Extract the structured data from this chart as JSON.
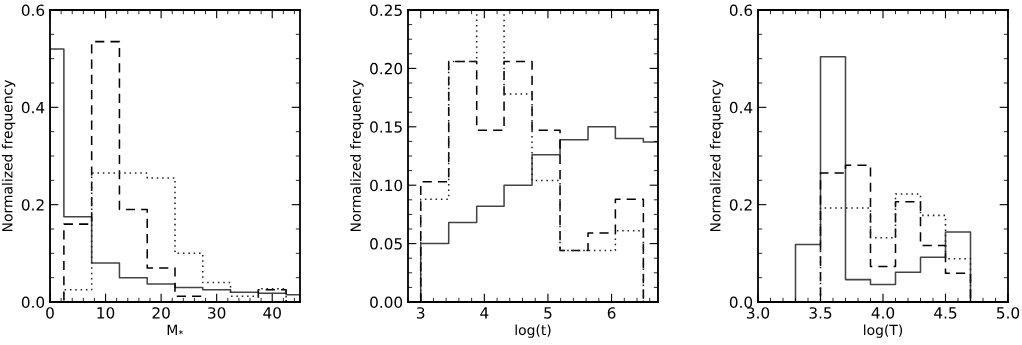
{
  "chart_data": [
    {
      "type": "histogram",
      "xlabel": "M$_{*}$",
      "ylabel": "Normalized frequency",
      "xlim": [
        0,
        45
      ],
      "ylim": [
        0,
        0.6
      ],
      "xticks": [
        0,
        10,
        20,
        30,
        40
      ],
      "yticks": [
        {
          "value": 0,
          "label": "0.0"
        },
        {
          "value": 0.2,
          "label": "0.2"
        },
        {
          "value": 0.4,
          "label": "0.4"
        },
        {
          "value": 0.6,
          "label": "0.6"
        }
      ],
      "grid": false,
      "legend": false,
      "bins": [
        0,
        2.5,
        7.5,
        12.5,
        17.5,
        22.5,
        27.5,
        32.5,
        37.5,
        42.5,
        45
      ],
      "series": [
        {
          "color": "#444444",
          "line_style": "solid",
          "values": [
            0.52,
            0.175,
            0.08,
            0.05,
            0.037,
            0.03,
            0.025,
            0.02,
            0.018,
            0.015
          ]
        },
        {
          "color": "#000000",
          "line_style": "dashed",
          "values": [
            0,
            0.16,
            0.535,
            0.19,
            0.07,
            0.012,
            0.0,
            0.0,
            0.025,
            0
          ]
        },
        {
          "color": "#222222",
          "line_style": "dotted",
          "values": [
            0,
            0.025,
            0.265,
            0.265,
            0.255,
            0.1,
            0.04,
            0.012,
            0.027,
            0
          ]
        }
      ]
    },
    {
      "type": "histogram",
      "xlabel": "log(t)",
      "ylabel": "Normalized frequency",
      "xlim": [
        2.8,
        6.73
      ],
      "ylim": [
        0,
        0.25
      ],
      "xticks": [
        3,
        4,
        5,
        6
      ],
      "yticks": [
        {
          "value": 0,
          "label": "0.00"
        },
        {
          "value": 0.05,
          "label": "0.05"
        },
        {
          "value": 0.1,
          "label": "0.10"
        },
        {
          "value": 0.15,
          "label": "0.15"
        },
        {
          "value": 0.2,
          "label": "0.20"
        },
        {
          "value": 0.25,
          "label": "0.25"
        }
      ],
      "grid": false,
      "legend": false,
      "bins": [
        3.0,
        3.44,
        3.88,
        4.31,
        4.75,
        5.19,
        5.63,
        6.06,
        6.5,
        6.73
      ],
      "series": [
        {
          "color": "#444444",
          "line_style": "solid",
          "values": [
            0.05,
            0.068,
            0.082,
            0.1,
            0.126,
            0.139,
            0.15,
            0.14,
            0.137
          ]
        },
        {
          "color": "#000000",
          "line_style": "dashed",
          "values": [
            0.103,
            0.206,
            0.147,
            0.206,
            0.147,
            0.044,
            0.059,
            0.088,
            0
          ]
        },
        {
          "color": "#222222",
          "line_style": "dotted",
          "values": [
            0.088,
            0.206,
            0.25,
            0.178,
            0.104,
            0.044,
            0.044,
            0.061,
            0
          ]
        }
      ]
    },
    {
      "type": "histogram",
      "xlabel": "log(T)",
      "ylabel": "Normalized frequency",
      "xlim": [
        3.0,
        5.0
      ],
      "ylim": [
        0,
        0.6
      ],
      "xticks": [
        {
          "value": 3,
          "label": "3.0"
        },
        {
          "value": 3.5,
          "label": "3.5"
        },
        {
          "value": 4,
          "label": "4.0"
        },
        {
          "value": 4.5,
          "label": "4.5"
        },
        {
          "value": 5,
          "label": "5.0"
        }
      ],
      "yticks": [
        {
          "value": 0,
          "label": "0.0"
        },
        {
          "value": 0.2,
          "label": "0.2"
        },
        {
          "value": 0.4,
          "label": "0.4"
        },
        {
          "value": 0.6,
          "label": "0.6"
        }
      ],
      "grid": false,
      "legend": false,
      "bins": [
        3.3,
        3.5,
        3.7,
        3.9,
        4.1,
        4.3,
        4.5,
        4.7
      ],
      "series": [
        {
          "color": "#444444",
          "line_style": "solid",
          "values": [
            0.118,
            0.504,
            0.046,
            0.036,
            0.061,
            0.092,
            0.144
          ]
        },
        {
          "color": "#000000",
          "line_style": "dashed",
          "values": [
            0,
            0.265,
            0.281,
            0.073,
            0.206,
            0.116,
            0.059
          ]
        },
        {
          "color": "#222222",
          "line_style": "dotted",
          "values": [
            0,
            0.193,
            0.193,
            0.132,
            0.222,
            0.178,
            0.089
          ]
        }
      ]
    }
  ]
}
